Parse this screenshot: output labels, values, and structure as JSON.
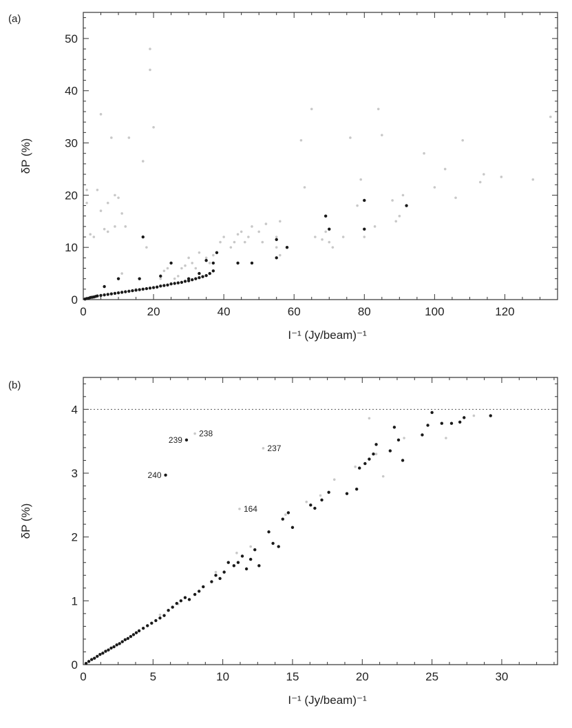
{
  "chart_data": [
    {
      "type": "scatter",
      "panel_label": "(a)",
      "xlabel": "I⁻¹ (Jy/beam)⁻¹",
      "ylabel": "δP (%)",
      "xlim": [
        0,
        135
      ],
      "ylim": [
        0,
        55
      ],
      "xticks": [
        0,
        20,
        40,
        60,
        80,
        100,
        120
      ],
      "yticks": [
        0,
        10,
        20,
        30,
        40,
        50
      ],
      "grid": false,
      "reference_line": null,
      "series": [
        {
          "color": "#c8c8c8",
          "points": [
            [
              1,
              21
            ],
            [
              1,
              18.5
            ],
            [
              2,
              12.5
            ],
            [
              3,
              12
            ],
            [
              4,
              21
            ],
            [
              5,
              17
            ],
            [
              5,
              35.5
            ],
            [
              6,
              13.5
            ],
            [
              7,
              13
            ],
            [
              7,
              18.5
            ],
            [
              8,
              31
            ],
            [
              9,
              14
            ],
            [
              9,
              20
            ],
            [
              10,
              19.5
            ],
            [
              11,
              16.5
            ],
            [
              11,
              5
            ],
            [
              12,
              14
            ],
            [
              13,
              31
            ],
            [
              15,
              2
            ],
            [
              16,
              4
            ],
            [
              17,
              26.5
            ],
            [
              18,
              10
            ],
            [
              19,
              44
            ],
            [
              19,
              48
            ],
            [
              20,
              33
            ],
            [
              21,
              2.5
            ],
            [
              22,
              4
            ],
            [
              23,
              5.5
            ],
            [
              24,
              6
            ],
            [
              25,
              7
            ],
            [
              26,
              4
            ],
            [
              27,
              4.5
            ],
            [
              28,
              6
            ],
            [
              29,
              6.5
            ],
            [
              30,
              8
            ],
            [
              31,
              7
            ],
            [
              32,
              6
            ],
            [
              33,
              9
            ],
            [
              35,
              8
            ],
            [
              36,
              7
            ],
            [
              37,
              8.5
            ],
            [
              38,
              9
            ],
            [
              39,
              11
            ],
            [
              40,
              12
            ],
            [
              42,
              10
            ],
            [
              43,
              11
            ],
            [
              44,
              12.5
            ],
            [
              45,
              13
            ],
            [
              46,
              11
            ],
            [
              47,
              12
            ],
            [
              48,
              14
            ],
            [
              50,
              13
            ],
            [
              51,
              11
            ],
            [
              52,
              14.5
            ],
            [
              55,
              10
            ],
            [
              55,
              12
            ],
            [
              56,
              15
            ],
            [
              56,
              8.5
            ],
            [
              58,
              10
            ],
            [
              62,
              30.5
            ],
            [
              63,
              21.5
            ],
            [
              65,
              36.5
            ],
            [
              66,
              12
            ],
            [
              68,
              11.5
            ],
            [
              69,
              13
            ],
            [
              70,
              11
            ],
            [
              71,
              10
            ],
            [
              74,
              12
            ],
            [
              76,
              31
            ],
            [
              78,
              18
            ],
            [
              79,
              23
            ],
            [
              80,
              12
            ],
            [
              83,
              14
            ],
            [
              84,
              36.5
            ],
            [
              85,
              31.5
            ],
            [
              88,
              19
            ],
            [
              89,
              15
            ],
            [
              90,
              16
            ],
            [
              91,
              20
            ],
            [
              97,
              28
            ],
            [
              100,
              21.5
            ],
            [
              103,
              25
            ],
            [
              106,
              19.5
            ],
            [
              108,
              30.5
            ],
            [
              113,
              22.5
            ],
            [
              114,
              24
            ],
            [
              119,
              23.5
            ],
            [
              128,
              23
            ],
            [
              133,
              35
            ]
          ]
        },
        {
          "color": "#1a1a1a",
          "points": [
            [
              0.5,
              0.1
            ],
            [
              1,
              0.2
            ],
            [
              1.5,
              0.25
            ],
            [
              2,
              0.4
            ],
            [
              2.5,
              0.45
            ],
            [
              3,
              0.5
            ],
            [
              3.5,
              0.6
            ],
            [
              4,
              0.7
            ],
            [
              5,
              0.8
            ],
            [
              6,
              0.9
            ],
            [
              7,
              1
            ],
            [
              8,
              1.1
            ],
            [
              9,
              1.2
            ],
            [
              10,
              1.3
            ],
            [
              11,
              1.4
            ],
            [
              12,
              1.5
            ],
            [
              13,
              1.6
            ],
            [
              14,
              1.7
            ],
            [
              15,
              1.8
            ],
            [
              16,
              1.9
            ],
            [
              17,
              2
            ],
            [
              18,
              2.1
            ],
            [
              19,
              2.2
            ],
            [
              20,
              2.3
            ],
            [
              21,
              2.4
            ],
            [
              22,
              2.6
            ],
            [
              23,
              2.7
            ],
            [
              24,
              2.8
            ],
            [
              25,
              3
            ],
            [
              26,
              3.1
            ],
            [
              27,
              3.2
            ],
            [
              28,
              3.3
            ],
            [
              29,
              3.5
            ],
            [
              30,
              3.6
            ],
            [
              31,
              3.8
            ],
            [
              32,
              4
            ],
            [
              33,
              4.2
            ],
            [
              34,
              4.4
            ],
            [
              35,
              4.6
            ],
            [
              36,
              5
            ],
            [
              37,
              5.5
            ],
            [
              6,
              2.5
            ],
            [
              10,
              4
            ],
            [
              16,
              4
            ],
            [
              17,
              12
            ],
            [
              22,
              4.5
            ],
            [
              25,
              7
            ],
            [
              30,
              4
            ],
            [
              33,
              5
            ],
            [
              35,
              7.5
            ],
            [
              37,
              7
            ],
            [
              38,
              9
            ],
            [
              44,
              7
            ],
            [
              48,
              7
            ],
            [
              55,
              11.5
            ],
            [
              55,
              8
            ],
            [
              58,
              10
            ],
            [
              69,
              16
            ],
            [
              70,
              13.5
            ],
            [
              80,
              19
            ],
            [
              80,
              13.5
            ],
            [
              92,
              18
            ]
          ]
        }
      ],
      "annotations": []
    },
    {
      "type": "scatter",
      "panel_label": "(b)",
      "xlabel": "I⁻¹ (Jy/beam)⁻¹",
      "ylabel": "δP (%)",
      "xlim": [
        0,
        34
      ],
      "ylim": [
        0,
        4.5
      ],
      "xticks": [
        0,
        5,
        10,
        15,
        20,
        25,
        30
      ],
      "yticks": [
        0,
        1,
        2,
        3,
        4
      ],
      "grid": false,
      "reference_line": {
        "y": 4,
        "style": "dotted"
      },
      "series": [
        {
          "color": "#c8c8c8",
          "points": [
            [
              8,
              3.62
            ],
            [
              12.9,
              3.39
            ],
            [
              11.2,
              2.44
            ],
            [
              5.5,
              0.78
            ],
            [
              6.8,
              0.95
            ],
            [
              9.5,
              1.45
            ],
            [
              11,
              1.75
            ],
            [
              12,
              1.85
            ],
            [
              14.5,
              2.35
            ],
            [
              16,
              2.55
            ],
            [
              17,
              2.65
            ],
            [
              18,
              2.9
            ],
            [
              19.5,
              3.1
            ],
            [
              20.5,
              3.86
            ],
            [
              21,
              3.3
            ],
            [
              21.5,
              2.95
            ],
            [
              23,
              3.55
            ],
            [
              26,
              3.55
            ],
            [
              28,
              3.9
            ]
          ]
        },
        {
          "color": "#1a1a1a",
          "points": [
            [
              0.2,
              0.02
            ],
            [
              0.4,
              0.05
            ],
            [
              0.6,
              0.08
            ],
            [
              0.8,
              0.1
            ],
            [
              1,
              0.13
            ],
            [
              1.2,
              0.16
            ],
            [
              1.4,
              0.18
            ],
            [
              1.6,
              0.21
            ],
            [
              1.8,
              0.23
            ],
            [
              2,
              0.26
            ],
            [
              2.2,
              0.28
            ],
            [
              2.4,
              0.31
            ],
            [
              2.6,
              0.33
            ],
            [
              2.8,
              0.36
            ],
            [
              3,
              0.39
            ],
            [
              3.2,
              0.41
            ],
            [
              3.4,
              0.44
            ],
            [
              3.6,
              0.47
            ],
            [
              3.8,
              0.5
            ],
            [
              4,
              0.53
            ],
            [
              4.3,
              0.57
            ],
            [
              4.6,
              0.61
            ],
            [
              4.9,
              0.65
            ],
            [
              5.2,
              0.69
            ],
            [
              5.5,
              0.73
            ],
            [
              5.8,
              0.77
            ],
            [
              6.1,
              0.85
            ],
            [
              6.4,
              0.9
            ],
            [
              6.7,
              0.96
            ],
            [
              7,
              1
            ],
            [
              7.3,
              1.05
            ],
            [
              7.6,
              1.02
            ],
            [
              8,
              1.1
            ],
            [
              8.3,
              1.15
            ],
            [
              8.6,
              1.22
            ],
            [
              9.2,
              1.3
            ],
            [
              9.5,
              1.4
            ],
            [
              9.8,
              1.35
            ],
            [
              10.1,
              1.45
            ],
            [
              10.4,
              1.6
            ],
            [
              10.8,
              1.55
            ],
            [
              11.1,
              1.6
            ],
            [
              11.4,
              1.7
            ],
            [
              11.7,
              1.5
            ],
            [
              12,
              1.65
            ],
            [
              12.3,
              1.8
            ],
            [
              12.6,
              1.55
            ],
            [
              13.3,
              2.08
            ],
            [
              13.6,
              1.9
            ],
            [
              14,
              1.85
            ],
            [
              14.3,
              2.28
            ],
            [
              14.7,
              2.38
            ],
            [
              15,
              2.15
            ],
            [
              16.3,
              2.5
            ],
            [
              16.6,
              2.45
            ],
            [
              17.1,
              2.58
            ],
            [
              17.6,
              2.7
            ],
            [
              18.9,
              2.68
            ],
            [
              19.6,
              2.75
            ],
            [
              19.8,
              3.08
            ],
            [
              20.2,
              3.15
            ],
            [
              20.5,
              3.22
            ],
            [
              20.8,
              3.3
            ],
            [
              21,
              3.45
            ],
            [
              22,
              3.35
            ],
            [
              22.3,
              3.72
            ],
            [
              22.6,
              3.52
            ],
            [
              22.9,
              3.2
            ],
            [
              24.3,
              3.6
            ],
            [
              24.7,
              3.75
            ],
            [
              25,
              3.95
            ],
            [
              25.7,
              3.78
            ],
            [
              26.4,
              3.78
            ],
            [
              27,
              3.8
            ],
            [
              27.3,
              3.87
            ],
            [
              29.2,
              3.9
            ],
            [
              7.4,
              3.52
            ],
            [
              5.9,
              2.97
            ]
          ]
        }
      ],
      "annotations": [
        {
          "label": "239",
          "x": 7.4,
          "y": 3.52
        },
        {
          "label": "238",
          "x": 8,
          "y": 3.62
        },
        {
          "label": "237",
          "x": 12.9,
          "y": 3.39
        },
        {
          "label": "240",
          "x": 5.9,
          "y": 2.97
        },
        {
          "label": "164",
          "x": 11.2,
          "y": 2.44
        }
      ]
    }
  ]
}
